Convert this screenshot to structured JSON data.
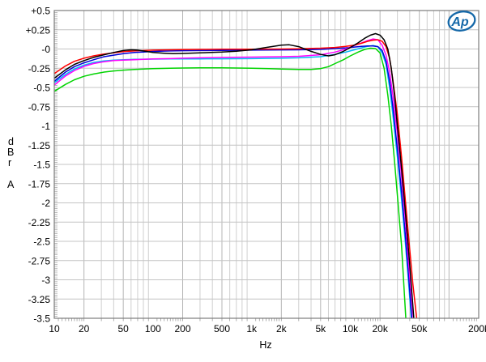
{
  "logo": {
    "text": "Ap",
    "color": "#1568a8"
  },
  "chart_data": {
    "type": "line",
    "title": "",
    "xlabel": "Hz",
    "ylabel": "dBr A",
    "ylabel_chars": [
      "d",
      "B",
      "r",
      "A"
    ],
    "x_scale": "log",
    "x_range": [
      10,
      200000
    ],
    "y_range": [
      -3.5,
      0.5
    ],
    "grid": true,
    "legend_position": "none",
    "x_ticks": [
      {
        "f": 10,
        "label": "10"
      },
      {
        "f": 20,
        "label": "20"
      },
      {
        "f": 50,
        "label": "50"
      },
      {
        "f": 100,
        "label": "100"
      },
      {
        "f": 200,
        "label": "200"
      },
      {
        "f": 500,
        "label": "500"
      },
      {
        "f": 1000,
        "label": "1k"
      },
      {
        "f": 2000,
        "label": "2k"
      },
      {
        "f": 5000,
        "label": "5k"
      },
      {
        "f": 10000,
        "label": "10k"
      },
      {
        "f": 20000,
        "label": "20k"
      },
      {
        "f": 50000,
        "label": "50k"
      },
      {
        "f": 100000,
        "label": ""
      },
      {
        "f": 200000,
        "label": "200k"
      }
    ],
    "y_ticks": [
      {
        "v": 0.5,
        "label": "+0.5"
      },
      {
        "v": 0.25,
        "label": "+0.25"
      },
      {
        "v": 0,
        "label": "-0"
      },
      {
        "v": -0.25,
        "label": "-0.25"
      },
      {
        "v": -0.5,
        "label": "-0.5"
      },
      {
        "v": -0.75,
        "label": "-0.75"
      },
      {
        "v": -1,
        "label": "-1"
      },
      {
        "v": -1.25,
        "label": "-1.25"
      },
      {
        "v": -1.5,
        "label": "-1.5"
      },
      {
        "v": -1.75,
        "label": "-1.75"
      },
      {
        "v": -2,
        "label": "-2"
      },
      {
        "v": -2.25,
        "label": "-2.25"
      },
      {
        "v": -2.5,
        "label": "-2.5"
      },
      {
        "v": -2.75,
        "label": "-2.75"
      },
      {
        "v": -3,
        "label": "-3"
      },
      {
        "v": -3.25,
        "label": "-3.25"
      },
      {
        "v": -3.5,
        "label": "-3.5"
      }
    ],
    "series": [
      {
        "name": "trace-green",
        "color": "#00d400",
        "points": [
          [
            10,
            -0.55
          ],
          [
            13,
            -0.46
          ],
          [
            16,
            -0.4
          ],
          [
            20,
            -0.355
          ],
          [
            25,
            -0.325
          ],
          [
            32,
            -0.3
          ],
          [
            40,
            -0.285
          ],
          [
            50,
            -0.275
          ],
          [
            65,
            -0.265
          ],
          [
            80,
            -0.26
          ],
          [
            100,
            -0.255
          ],
          [
            150,
            -0.25
          ],
          [
            200,
            -0.247
          ],
          [
            300,
            -0.245
          ],
          [
            500,
            -0.245
          ],
          [
            1000,
            -0.25
          ],
          [
            1500,
            -0.255
          ],
          [
            2000,
            -0.26
          ],
          [
            3000,
            -0.265
          ],
          [
            4000,
            -0.265
          ],
          [
            5000,
            -0.255
          ],
          [
            6000,
            -0.23
          ],
          [
            7000,
            -0.19
          ],
          [
            8500,
            -0.14
          ],
          [
            10000,
            -0.09
          ],
          [
            12000,
            -0.04
          ],
          [
            14000,
            -0.005
          ],
          [
            16000,
            0.01
          ],
          [
            18000,
            0.005
          ],
          [
            20000,
            -0.05
          ],
          [
            22000,
            -0.25
          ],
          [
            24000,
            -0.6
          ],
          [
            26000,
            -1.0
          ],
          [
            28000,
            -1.45
          ],
          [
            30000,
            -1.9
          ],
          [
            33000,
            -2.55
          ],
          [
            36500,
            -3.5
          ]
        ]
      },
      {
        "name": "trace-cyan",
        "color": "#00b8f5",
        "points": [
          [
            10,
            -0.44
          ],
          [
            13,
            -0.33
          ],
          [
            16,
            -0.26
          ],
          [
            20,
            -0.21
          ],
          [
            25,
            -0.175
          ],
          [
            32,
            -0.155
          ],
          [
            40,
            -0.145
          ],
          [
            50,
            -0.14
          ],
          [
            65,
            -0.135
          ],
          [
            80,
            -0.133
          ],
          [
            100,
            -0.132
          ],
          [
            150,
            -0.13
          ],
          [
            200,
            -0.13
          ],
          [
            300,
            -0.128
          ],
          [
            500,
            -0.127
          ],
          [
            1000,
            -0.125
          ],
          [
            2000,
            -0.12
          ],
          [
            3000,
            -0.115
          ],
          [
            5000,
            -0.1
          ],
          [
            7000,
            -0.07
          ],
          [
            9000,
            -0.04
          ],
          [
            11000,
            -0.01
          ],
          [
            13000,
            0.015
          ],
          [
            15000,
            0.035
          ],
          [
            17000,
            0.045
          ],
          [
            19000,
            0.03
          ],
          [
            21000,
            -0.05
          ],
          [
            23000,
            -0.2
          ],
          [
            25000,
            -0.5
          ],
          [
            27000,
            -0.85
          ],
          [
            30000,
            -1.4
          ],
          [
            33000,
            -1.95
          ],
          [
            36000,
            -2.5
          ],
          [
            39000,
            -3.05
          ],
          [
            41500,
            -3.5
          ]
        ]
      },
      {
        "name": "trace-blue",
        "color": "#0000d8",
        "points": [
          [
            10,
            -0.42
          ],
          [
            13,
            -0.3
          ],
          [
            16,
            -0.23
          ],
          [
            20,
            -0.18
          ],
          [
            25,
            -0.14
          ],
          [
            32,
            -0.1
          ],
          [
            40,
            -0.08
          ],
          [
            50,
            -0.06
          ],
          [
            65,
            -0.045
          ],
          [
            80,
            -0.04
          ],
          [
            100,
            -0.032
          ],
          [
            150,
            -0.025
          ],
          [
            200,
            -0.022
          ],
          [
            300,
            -0.02
          ],
          [
            500,
            -0.018
          ],
          [
            1000,
            -0.015
          ],
          [
            2000,
            -0.012
          ],
          [
            3000,
            -0.01
          ],
          [
            5000,
            -0.005
          ],
          [
            7000,
            0.005
          ],
          [
            9000,
            0.015
          ],
          [
            11000,
            0.025
          ],
          [
            13000,
            0.035
          ],
          [
            15000,
            0.04
          ],
          [
            17000,
            0.04
          ],
          [
            19000,
            0.03
          ],
          [
            21000,
            -0.02
          ],
          [
            23000,
            -0.16
          ],
          [
            25000,
            -0.42
          ],
          [
            27000,
            -0.75
          ],
          [
            30000,
            -1.3
          ],
          [
            33000,
            -1.85
          ],
          [
            36000,
            -2.4
          ],
          [
            39000,
            -2.95
          ],
          [
            42000,
            -3.5
          ]
        ]
      },
      {
        "name": "trace-magenta",
        "color": "#ff00ff",
        "points": [
          [
            10,
            -0.47
          ],
          [
            13,
            -0.35
          ],
          [
            16,
            -0.28
          ],
          [
            20,
            -0.225
          ],
          [
            25,
            -0.19
          ],
          [
            32,
            -0.165
          ],
          [
            40,
            -0.15
          ],
          [
            50,
            -0.145
          ],
          [
            65,
            -0.14
          ],
          [
            80,
            -0.135
          ],
          [
            100,
            -0.13
          ],
          [
            150,
            -0.125
          ],
          [
            200,
            -0.12
          ],
          [
            300,
            -0.115
          ],
          [
            500,
            -0.11
          ],
          [
            1000,
            -0.105
          ],
          [
            2000,
            -0.1
          ],
          [
            3000,
            -0.095
          ],
          [
            5000,
            -0.075
          ],
          [
            7000,
            -0.04
          ],
          [
            9000,
            0.0
          ],
          [
            11000,
            0.045
          ],
          [
            13000,
            0.08
          ],
          [
            15000,
            0.11
          ],
          [
            17000,
            0.13
          ],
          [
            19000,
            0.12
          ],
          [
            21000,
            0.05
          ],
          [
            23000,
            -0.08
          ],
          [
            25000,
            -0.3
          ],
          [
            27000,
            -0.6
          ],
          [
            30000,
            -1.1
          ],
          [
            33000,
            -1.65
          ],
          [
            36000,
            -2.2
          ],
          [
            40000,
            -2.95
          ],
          [
            43500,
            -3.5
          ]
        ]
      },
      {
        "name": "trace-red",
        "color": "#ff0000",
        "points": [
          [
            10,
            -0.32
          ],
          [
            13,
            -0.22
          ],
          [
            16,
            -0.16
          ],
          [
            20,
            -0.12
          ],
          [
            25,
            -0.09
          ],
          [
            32,
            -0.065
          ],
          [
            40,
            -0.05
          ],
          [
            50,
            -0.035
          ],
          [
            65,
            -0.025
          ],
          [
            80,
            -0.02
          ],
          [
            100,
            -0.015
          ],
          [
            150,
            -0.01
          ],
          [
            200,
            -0.008
          ],
          [
            300,
            -0.005
          ],
          [
            500,
            -0.003
          ],
          [
            1000,
            -0.002
          ],
          [
            2000,
            0.0
          ],
          [
            3000,
            0.003
          ],
          [
            5000,
            0.01
          ],
          [
            7000,
            0.02
          ],
          [
            9000,
            0.035
          ],
          [
            11000,
            0.05
          ],
          [
            13000,
            0.075
          ],
          [
            15000,
            0.1
          ],
          [
            17000,
            0.115
          ],
          [
            19000,
            0.12
          ],
          [
            21000,
            0.1
          ],
          [
            23000,
            0.03
          ],
          [
            25000,
            -0.12
          ],
          [
            27000,
            -0.4
          ],
          [
            30000,
            -0.85
          ],
          [
            33000,
            -1.4
          ],
          [
            36000,
            -1.95
          ],
          [
            40000,
            -2.6
          ],
          [
            43000,
            -3.05
          ],
          [
            47000,
            -3.5
          ]
        ]
      },
      {
        "name": "trace-black",
        "color": "#000000",
        "points": [
          [
            10,
            -0.38
          ],
          [
            13,
            -0.27
          ],
          [
            16,
            -0.2
          ],
          [
            20,
            -0.15
          ],
          [
            25,
            -0.11
          ],
          [
            32,
            -0.075
          ],
          [
            40,
            -0.045
          ],
          [
            50,
            -0.02
          ],
          [
            60,
            -0.01
          ],
          [
            70,
            -0.015
          ],
          [
            85,
            -0.03
          ],
          [
            100,
            -0.045
          ],
          [
            130,
            -0.055
          ],
          [
            160,
            -0.06
          ],
          [
            200,
            -0.058
          ],
          [
            300,
            -0.05
          ],
          [
            500,
            -0.04
          ],
          [
            700,
            -0.028
          ],
          [
            1000,
            -0.01
          ],
          [
            1400,
            0.02
          ],
          [
            2000,
            0.05
          ],
          [
            2400,
            0.055
          ],
          [
            3000,
            0.03
          ],
          [
            4000,
            -0.03
          ],
          [
            5000,
            -0.07
          ],
          [
            6000,
            -0.09
          ],
          [
            7000,
            -0.075
          ],
          [
            8500,
            -0.03
          ],
          [
            10000,
            0.02
          ],
          [
            12000,
            0.08
          ],
          [
            14000,
            0.14
          ],
          [
            16000,
            0.18
          ],
          [
            18000,
            0.2
          ],
          [
            20000,
            0.18
          ],
          [
            22000,
            0.12
          ],
          [
            24000,
            0.0
          ],
          [
            26000,
            -0.25
          ],
          [
            28000,
            -0.6
          ],
          [
            30000,
            -1.0
          ],
          [
            33000,
            -1.55
          ],
          [
            36000,
            -2.1
          ],
          [
            40000,
            -2.8
          ],
          [
            44000,
            -3.5
          ]
        ]
      }
    ]
  }
}
